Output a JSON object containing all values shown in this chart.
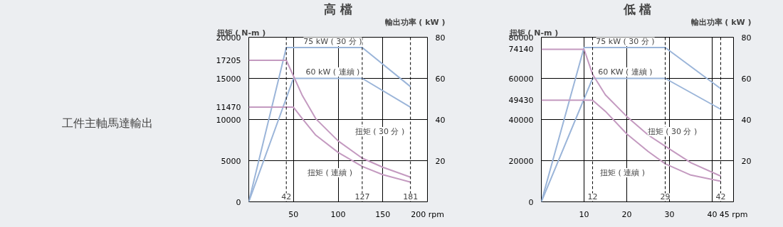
{
  "chart_data": [
    {
      "type": "line",
      "title": "高 檔",
      "ylabel": "扭矩 ( N-m )",
      "y2label": "輸出功率 ( kW )",
      "xlim": [
        0,
        200
      ],
      "xticks": [
        50,
        100,
        150,
        {
          "value": 200,
          "label": "200 rpm"
        }
      ],
      "ylim": [
        0,
        20000
      ],
      "yticks": [
        0,
        5000,
        10000,
        11470,
        15000,
        17205,
        20000
      ],
      "y2lim": [
        0,
        80
      ],
      "y2ticks": [
        20,
        40,
        60,
        80
      ],
      "grid": true,
      "series": [
        {
          "axis": "y2",
          "color": "#9bb5d9",
          "x": [
            0,
            42,
            127,
            181
          ],
          "values": [
            0,
            75,
            75,
            56
          ]
        },
        {
          "axis": "y2",
          "color": "#9bb5d9",
          "x": [
            0,
            50,
            127,
            181
          ],
          "values": [
            0,
            60,
            60,
            46
          ]
        },
        {
          "axis": "y",
          "color": "#c49ac0",
          "x": [
            0,
            42,
            50,
            60,
            75,
            100,
            127,
            150,
            181
          ],
          "values": [
            17200,
            17200,
            15300,
            12900,
            10100,
            7400,
            5300,
            4200,
            3000
          ]
        },
        {
          "axis": "y",
          "color": "#c49ac0",
          "x": [
            0,
            50,
            60,
            75,
            100,
            127,
            150,
            181
          ],
          "values": [
            11500,
            11500,
            10100,
            8100,
            6000,
            4300,
            3300,
            2400
          ]
        }
      ],
      "ref_lines": [
        {
          "axis": "x",
          "value": 42,
          "label": "42",
          "line_style": "dashed"
        },
        {
          "axis": "x",
          "value": 127,
          "label": "127",
          "line_style": "dashed"
        },
        {
          "axis": "x",
          "value": 181,
          "label": "181",
          "line_style": "dashed"
        }
      ],
      "annotations": [
        "工件主軸馬達輸出",
        "75 kW ( 30 分 )",
        "60 kW ( 連續 )",
        "扭矩 ( 30 分 )",
        "扭矩 ( 連續 )"
      ]
    },
    {
      "type": "line",
      "title": "低 檔",
      "ylabel": "扭矩 ( N-m )",
      "y2label": "輸出功率 ( kW )",
      "xlim": [
        0,
        45
      ],
      "xticks": [
        10,
        20,
        30,
        40,
        {
          "value": 45,
          "label": "45 rpm"
        }
      ],
      "ylim": [
        0,
        80000
      ],
      "yticks": [
        0,
        20000,
        40000,
        49430,
        60000,
        74140,
        80000
      ],
      "y2lim": [
        0,
        80
      ],
      "y2ticks": [
        20,
        40,
        60,
        80
      ],
      "grid": true,
      "series": [
        {
          "axis": "y2",
          "color": "#9bb5d9",
          "x": [
            0,
            10,
            29,
            42
          ],
          "values": [
            0,
            75,
            75,
            55
          ]
        },
        {
          "axis": "y2",
          "color": "#9bb5d9",
          "x": [
            0,
            12,
            29,
            42
          ],
          "values": [
            0,
            60,
            60,
            45
          ]
        },
        {
          "axis": "y",
          "color": "#c49ac0",
          "x": [
            0,
            10,
            12,
            15,
            20,
            25,
            29,
            35,
            42
          ],
          "values": [
            74100,
            74100,
            62000,
            52000,
            41500,
            32500,
            27000,
            19000,
            12500
          ]
        },
        {
          "axis": "y",
          "color": "#c49ac0",
          "x": [
            0,
            12,
            15,
            20,
            25,
            29,
            35,
            42
          ],
          "values": [
            49400,
            49400,
            44000,
            33000,
            24500,
            18500,
            13000,
            10000
          ]
        }
      ],
      "ref_lines": [
        {
          "axis": "x",
          "value": 12,
          "label": "12",
          "line_style": "dashed"
        },
        {
          "axis": "x",
          "value": 29,
          "label": "29",
          "line_style": "dashed"
        },
        {
          "axis": "x",
          "value": 42,
          "label": "42",
          "line_style": "dashed"
        }
      ],
      "annotations": [
        "75 kW ( 30 分 )",
        "60 KW ( 連續 )",
        "扭矩 ( 30 分 )",
        "扭矩 ( 連續 )"
      ]
    }
  ]
}
